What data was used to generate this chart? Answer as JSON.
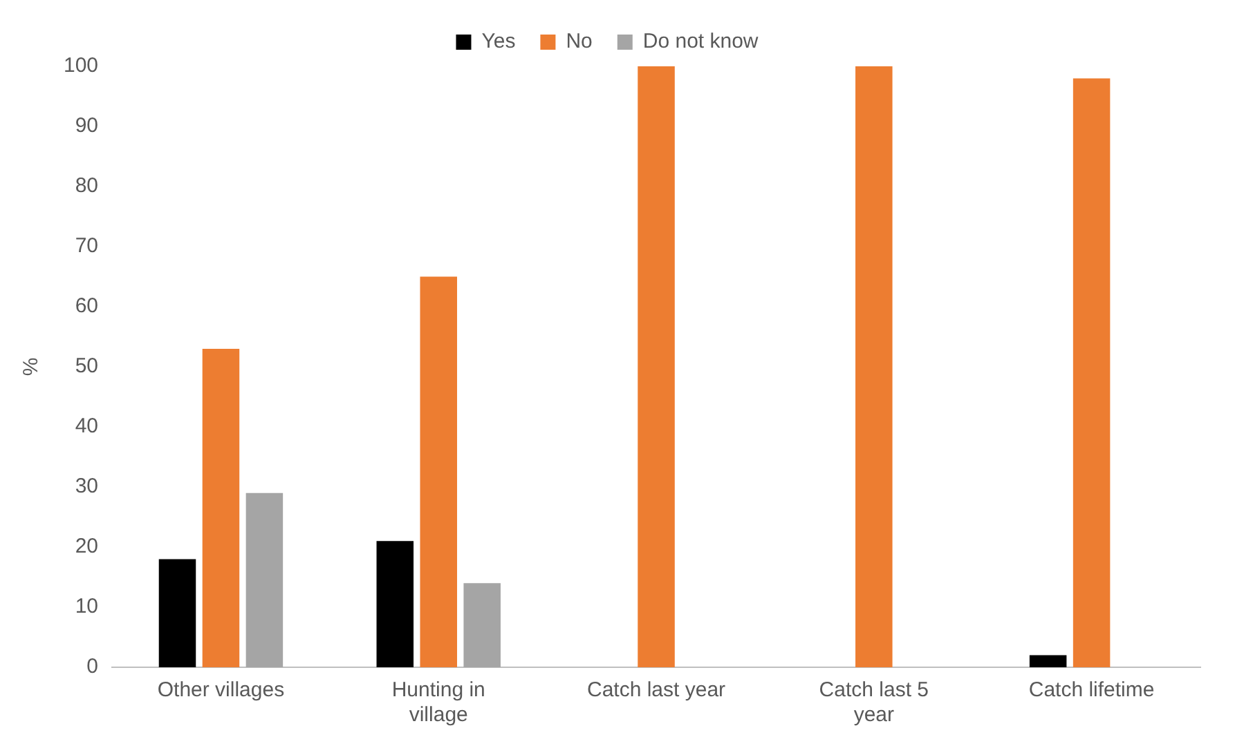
{
  "chart_data": {
    "type": "bar",
    "ylabel": "%",
    "categories": [
      "Other villages",
      "Hunting in village",
      "Catch last year",
      "Catch last 5 year",
      "Catch lifetime"
    ],
    "series": [
      {
        "name": "Yes",
        "color": "#000000",
        "values": [
          18,
          21,
          0,
          0,
          2
        ]
      },
      {
        "name": "No",
        "color": "#ed7d31",
        "values": [
          53,
          65,
          100,
          100,
          98
        ]
      },
      {
        "name": "Do not know",
        "color": "#a5a5a5",
        "values": [
          29,
          14,
          0,
          0,
          0
        ]
      }
    ],
    "ylim": [
      0,
      100
    ],
    "yticks": [
      0,
      10,
      20,
      30,
      40,
      50,
      60,
      70,
      80,
      90,
      100
    ],
    "grid": false,
    "legend": "top"
  }
}
